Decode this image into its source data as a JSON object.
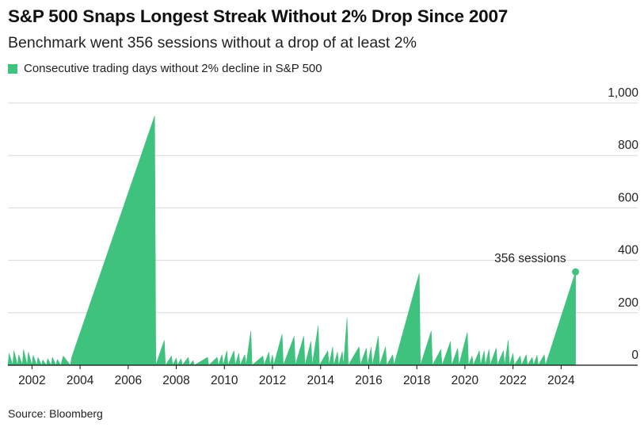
{
  "chart_data": {
    "type": "area",
    "title": "S&P 500 Snaps Longest Streak Without 2% Drop Since 2007",
    "subtitle": "Benchmark went 356 sessions without a drop of at least 2%",
    "legend": "Consecutive trading days without 2% decline in S&P 500",
    "source": "Source: Bloomberg",
    "color": "#40c27f",
    "xlim": [
      2001.0,
      2025.7
    ],
    "ylim": [
      0,
      1000
    ],
    "x_ticks": [
      2002,
      2004,
      2006,
      2008,
      2010,
      2012,
      2014,
      2016,
      2018,
      2020,
      2022,
      2024
    ],
    "x_tick_labels": [
      "2002",
      "2004",
      "2006",
      "2008",
      "2010",
      "2012",
      "2014",
      "2016",
      "2018",
      "2020",
      "2022",
      "2024"
    ],
    "y_ticks": [
      0,
      200,
      400,
      600,
      800,
      1000
    ],
    "y_tick_labels": [
      "0",
      "200",
      "400",
      "600",
      "800",
      "1,000"
    ],
    "y_axis_position": "right",
    "grid": "horizontal",
    "series": [
      {
        "x": [
          2001.0,
          2001.05,
          2001.2,
          2001.25,
          2001.4,
          2001.45,
          2001.6,
          2001.65,
          2001.8,
          2001.85,
          2002.0,
          2002.05,
          2002.2,
          2002.25,
          2002.4,
          2002.45,
          2002.6,
          2002.65,
          2002.8,
          2002.85,
          2003.0,
          2003.05,
          2003.2,
          2003.3,
          2003.6,
          2003.65,
          2007.1,
          2007.15,
          2007.5,
          2007.55,
          2007.8,
          2007.85,
          2008.0,
          2008.05,
          2008.2,
          2008.25,
          2008.5,
          2008.55,
          2008.7,
          2008.75,
          2009.3,
          2009.35,
          2009.7,
          2009.75,
          2009.9,
          2009.95,
          2010.1,
          2010.15,
          2010.4,
          2010.45,
          2010.6,
          2010.65,
          2010.85,
          2010.9,
          2011.1,
          2011.15,
          2011.6,
          2011.65,
          2011.85,
          2011.9,
          2012.0,
          2012.05,
          2012.4,
          2012.45,
          2012.9,
          2012.95,
          2013.3,
          2013.35,
          2013.6,
          2013.65,
          2013.9,
          2013.95,
          2014.3,
          2014.35,
          2014.5,
          2014.55,
          2014.7,
          2014.75,
          2014.9,
          2014.95,
          2015.1,
          2015.15,
          2015.6,
          2015.65,
          2015.9,
          2015.95,
          2016.1,
          2016.15,
          2016.4,
          2016.45,
          2016.7,
          2016.75,
          2017.0,
          2017.05,
          2018.1,
          2018.15,
          2018.6,
          2018.65,
          2019.0,
          2019.05,
          2019.4,
          2019.45,
          2019.7,
          2019.75,
          2020.1,
          2020.15,
          2020.3,
          2020.35,
          2020.6,
          2020.65,
          2020.8,
          2020.85,
          2021.0,
          2021.05,
          2021.3,
          2021.35,
          2021.6,
          2021.65,
          2021.8,
          2021.85,
          2022.0,
          2022.05,
          2022.3,
          2022.35,
          2022.55,
          2022.6,
          2022.8,
          2022.85,
          2023.0,
          2023.05,
          2023.3,
          2023.35,
          2024.6
        ],
        "y": [
          0,
          45,
          0,
          55,
          0,
          40,
          0,
          60,
          0,
          50,
          0,
          38,
          0,
          30,
          0,
          20,
          0,
          25,
          0,
          30,
          0,
          22,
          0,
          35,
          0,
          30,
          950,
          0,
          95,
          0,
          35,
          0,
          28,
          0,
          25,
          0,
          30,
          0,
          18,
          0,
          30,
          0,
          30,
          0,
          40,
          0,
          55,
          0,
          55,
          0,
          45,
          0,
          40,
          0,
          130,
          0,
          35,
          0,
          50,
          0,
          40,
          0,
          118,
          0,
          110,
          0,
          110,
          0,
          90,
          0,
          150,
          0,
          55,
          0,
          70,
          0,
          50,
          0,
          52,
          0,
          180,
          0,
          70,
          0,
          65,
          0,
          68,
          0,
          110,
          0,
          70,
          0,
          40,
          0,
          350,
          0,
          130,
          0,
          60,
          0,
          90,
          0,
          65,
          0,
          125,
          0,
          35,
          0,
          55,
          0,
          55,
          0,
          60,
          0,
          65,
          0,
          55,
          0,
          95,
          0,
          45,
          0,
          35,
          0,
          40,
          0,
          30,
          0,
          38,
          0,
          40,
          0,
          356
        ]
      }
    ],
    "annotations": [
      {
        "x": 2024.6,
        "y": 356,
        "text": "356 sessions"
      }
    ]
  }
}
